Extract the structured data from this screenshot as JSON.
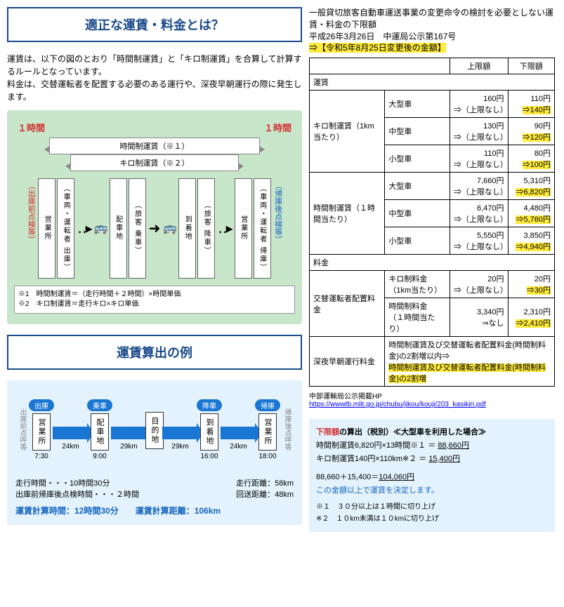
{
  "section1": {
    "title": "適正な運賃・料金とは？",
    "intro": "運賃は、以下の図のとおり「時間制運賃」と「キロ制運賃」を合算して計算するルールとなっています。\n料金は、交替運転者を配置する必要のある運行や、深夜早朝運行の際に発生します。",
    "diagram": {
      "hour_label": "１時間",
      "bar_time": "時間制運賃（※１）",
      "bar_km": "キロ制運賃（※２）",
      "side_left": "（出庫前点検等）",
      "side_right": "（帰庫後点検等）",
      "boxes": [
        "営業所",
        "（車両・運転者 出庫）",
        "配車地",
        "（旅客 乗車）",
        "到着地",
        "（旅客 降車）",
        "営業所",
        "（車両・運転者 帰庫）"
      ],
      "note1": "※1　時間制運賃＝（走行時間＋２時間）×時間単価",
      "note2": "※2　キロ制運賃＝走行キロ×キロ単価"
    }
  },
  "section2": {
    "title": "運賃算出の例",
    "labels": [
      "出庫",
      "乗車",
      "降車",
      "帰庫"
    ],
    "side_left": "出庫前点呼等",
    "side_right": "帰庫後点呼等",
    "boxes": [
      "営業所",
      "配車地",
      "目的地",
      "到着地",
      "営業所"
    ],
    "distances": [
      "24km",
      "29km",
      "29km",
      "24km"
    ],
    "times": [
      "7:30",
      "9:00",
      "",
      "16:00",
      "18:00"
    ],
    "stat1": "走行時間・・・10時間30分",
    "stat2": "出庫前帰庫後点検時間・・・２時間",
    "stat3": "走行距離：58km",
    "stat4": "回送距離：48km",
    "result": "運賃計算時間：12時間30分　　運賃計算距離：106km"
  },
  "right": {
    "header1": "一般貸切旅客自動車運送事業の変更命令の検討を必要としない運賃・料金の下限額",
    "header2": "平成26年3月26日　中運局公示第167号",
    "header3": "⇒【令和5年8月25日変更後の金額】",
    "col_upper": "上限額",
    "col_lower": "下限額",
    "sec_fare": "運賃",
    "sec_fee": "料金",
    "rows_km": {
      "label": "キロ制運賃（1km当たり）",
      "r": [
        {
          "t": "大型車",
          "u": "160円\n⇒（上限なし）",
          "l": "110円",
          "lh": "⇒140円"
        },
        {
          "t": "中型車",
          "u": "130円\n⇒（上限なし）",
          "l": "90円",
          "lh": "⇒120円"
        },
        {
          "t": "小型車",
          "u": "110円\n⇒（上限なし）",
          "l": "80円",
          "lh": "⇒100円"
        }
      ]
    },
    "rows_time": {
      "label": "時間制運賃（１時間当たり）",
      "r": [
        {
          "t": "大型車",
          "u": "7,660円\n⇒（上限なし）",
          "l": "5,310円",
          "lh": "⇒6,820円"
        },
        {
          "t": "中型車",
          "u": "6,470円\n⇒（上限なし）",
          "l": "4,480円",
          "lh": "⇒5,760円"
        },
        {
          "t": "小型車",
          "u": "5,550円\n⇒（上限なし）",
          "l": "3,850円",
          "lh": "⇒4,940円"
        }
      ]
    },
    "rows_sub": {
      "label": "交替運転者配置料金",
      "r": [
        {
          "t": "キロ制料金\n（1km当たり）",
          "u": "20円\n⇒（上限なし）",
          "l": "20円",
          "lh": "⇒30円"
        },
        {
          "t": "時間制料金\n（１時間当たり）",
          "u": "3,340円\n⇒なし",
          "l": "2,310円",
          "lh": "⇒2,410円"
        }
      ]
    },
    "row_night": {
      "label": "深夜早朝運行料金",
      "text1": "時間制運賃及び交替運転者配置料金(時間制料金)の2割増以内⇒",
      "text2": "時間制運賃及び交替運転者配置料金(時間制料金)の2割増"
    },
    "link_label": "中部運輸局公示掲載HP",
    "link_url": "https://wwwtb.mlit.go.jp/chubu/jikou/kouji/203_kasikiri.pdf",
    "calc": {
      "title": "下限額の算出（税別）≪大型車を利用した場合≫",
      "l1": "時間制運賃6,820円×13時間※１ ＝ ",
      "v1": "88,660円",
      "l2": "キロ制運賃140円×110km※２ ＝  ",
      "v2": "15,400円",
      "sum": "88,660＋15,400＝",
      "sumv": "104,060円",
      "result": "この金額以上で運賃を決定します。",
      "n1": "※１　３０分以上は１時間に切り上げ",
      "n2": "※２　１０km未満は１０kmに切り上げ"
    }
  }
}
